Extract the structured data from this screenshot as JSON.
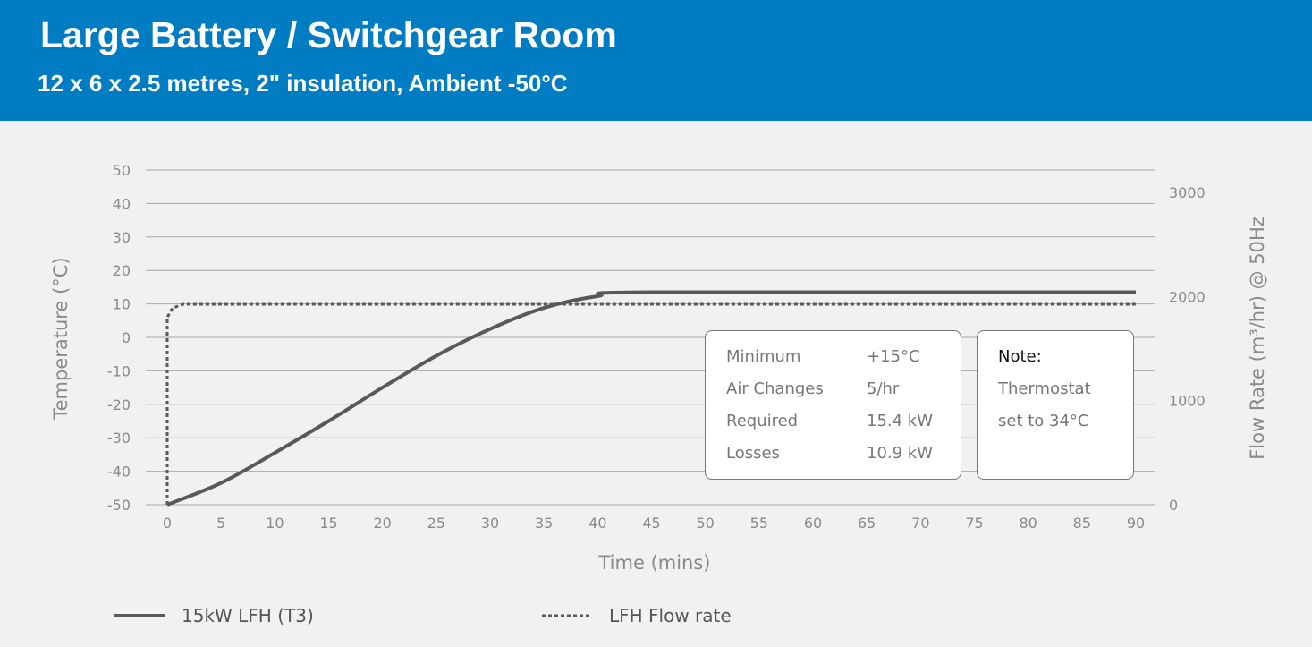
{
  "header": {
    "title": "Large Battery / Switchgear Room",
    "subtitle": "12 x 6 x 2.5 metres, 2\" insulation, Ambient -50°C"
  },
  "chart_data": {
    "type": "line",
    "xlabel": "Time (mins)",
    "ylabel": "Temperature (°C)",
    "y2label": "Flow Rate (m³/hr) @ 50Hz",
    "xlim": [
      0,
      90
    ],
    "ylim": [
      -50,
      50
    ],
    "y2lim": [
      0,
      3000
    ],
    "xticks": [
      0,
      5,
      10,
      15,
      20,
      25,
      30,
      35,
      40,
      45,
      50,
      55,
      60,
      65,
      70,
      75,
      80,
      85,
      90
    ],
    "yticks": [
      50,
      40,
      30,
      20,
      10,
      0,
      -10,
      -20,
      -30,
      -40,
      -50
    ],
    "y2ticks": [
      3000,
      2000,
      1000,
      0
    ],
    "grid": true,
    "legend_placement": "bottom",
    "series": [
      {
        "name": "15kW LFH (T3)",
        "axis": "left",
        "style": "solid",
        "color": "#595959",
        "x": [
          0,
          5,
          10,
          15,
          20,
          25,
          30,
          35,
          40,
          45,
          90
        ],
        "y": [
          -50,
          -43.5,
          -34.5,
          -25,
          -15,
          -5.5,
          2.5,
          8.8,
          12.3,
          13.5,
          13.5
        ]
      },
      {
        "name": "LFH Flow rate",
        "axis": "right",
        "style": "dotted",
        "color": "#595959",
        "x": [
          0,
          0,
          0.5,
          1.5,
          90
        ],
        "y": [
          0,
          1800,
          1890,
          1925,
          1925
        ]
      }
    ]
  },
  "info": {
    "rows": [
      {
        "label": "Minimum",
        "value": "+15°C"
      },
      {
        "label": "Air Changes",
        "value": "5/hr"
      },
      {
        "label": "Required",
        "value": "15.4 kW"
      },
      {
        "label": "Losses",
        "value": "10.9 kW"
      }
    ],
    "note_title": "Note:",
    "note_lines": [
      "Thermostat",
      "set to 34°C"
    ]
  }
}
